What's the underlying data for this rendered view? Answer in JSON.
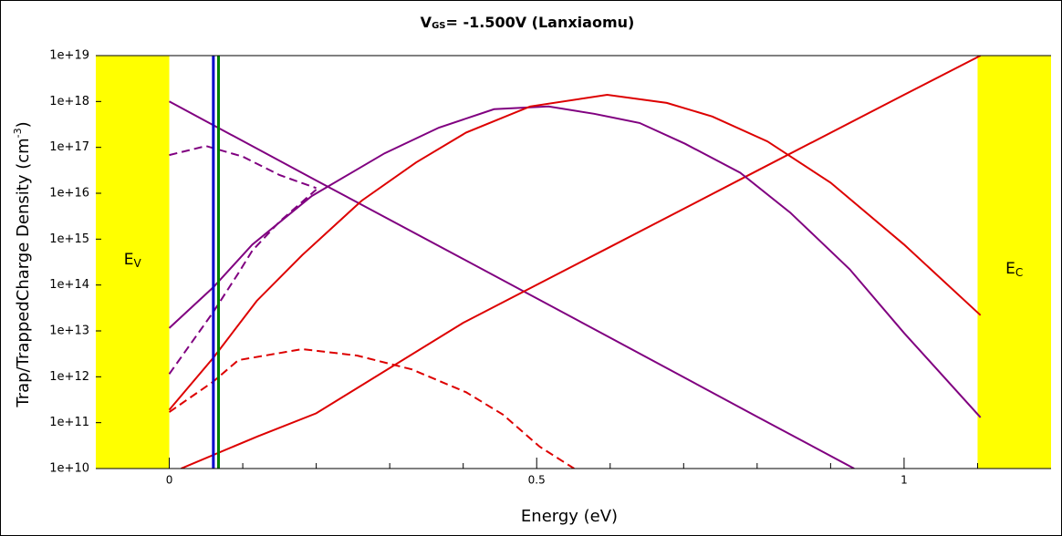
{
  "chart_data": {
    "type": "line",
    "title": {
      "main": "V",
      "sub": "GS",
      "rest": "= -1.500V (Lanxiaomu)"
    },
    "x_label": "Energy (eV)",
    "y_label": {
      "main": "Trap/TrappedCharge Density (cm",
      "sup": "-3",
      "end": ")"
    },
    "xlim": [
      -0.1,
      1.2
    ],
    "xticks": [
      0,
      0.5,
      1
    ],
    "xticks_minor": [
      0.1,
      0.2,
      0.3,
      0.4,
      0.6,
      0.7,
      0.8,
      0.9,
      1.1
    ],
    "ylim": [
      10000000000.0,
      1e+19
    ],
    "ylog": true,
    "yticks": [
      {
        "value": 10000000000.0,
        "label": "1e+10"
      },
      {
        "value": 100000000000.0,
        "label": "1e+11"
      },
      {
        "value": 1000000000000.0,
        "label": "1e+12"
      },
      {
        "value": 10000000000000.0,
        "label": "1e+13"
      },
      {
        "value": 100000000000000.0,
        "label": "1e+14"
      },
      {
        "value": 1000000000000000.0,
        "label": "1e+15"
      },
      {
        "value": 1e+16,
        "label": "1e+16"
      },
      {
        "value": 1e+17,
        "label": "1e+17"
      },
      {
        "value": 1e+18,
        "label": "1e+18"
      },
      {
        "value": 1e+19,
        "label": "1e+19"
      }
    ],
    "bands": [
      {
        "x0": -0.1,
        "x1": 0,
        "color": "#ffff00",
        "label": {
          "main": "E",
          "sub": "V"
        }
      },
      {
        "x0": 1.1,
        "x1": 1.2,
        "color": "#ffff00",
        "label": {
          "main": "E",
          "sub": "C"
        }
      }
    ],
    "vlines": [
      {
        "x": 0.06,
        "color": "#0000cc"
      },
      {
        "x": 0.067,
        "color": "#008000"
      }
    ],
    "series": [
      {
        "color": "#800080",
        "dash": false,
        "x": [
          0,
          0.2,
          0.4,
          0.6,
          0.8,
          0.932
        ],
        "values": [
          1e+18,
          1.9e+16,
          370000000000000.0,
          7100000000000.0,
          135000000000.0,
          10000000000.0
        ]
      },
      {
        "color": "#dd0000",
        "dash": false,
        "x": [
          0.016,
          0.12,
          0.2,
          0.4,
          0.6,
          0.8,
          1.0,
          1.104
        ],
        "values": [
          10000000000.0,
          50000000000.0,
          160000000000.0,
          15000000000000.0,
          680000000000000.0,
          3.1e+16,
          1.4e+18,
          1e+19
        ]
      },
      {
        "color": "#800080",
        "dash": false,
        "x": [
          0,
          0.06,
          0.113,
          0.194,
          0.293,
          0.367,
          0.442,
          0.516,
          0.578,
          0.64,
          0.702,
          0.777,
          0.845,
          0.926,
          1.0,
          1.104
        ],
        "values": [
          11500000000000.0,
          90000000000000.0,
          760000000000000.0,
          8700000000000000.0,
          7.4e+16,
          2.7e+17,
          6.8e+17,
          7.8e+17,
          5.4e+17,
          3.4e+17,
          1.2e+17,
          2.8e+16,
          3800000000000000.0,
          220000000000000.0,
          9000000000000.0,
          130000000000.0
        ]
      },
      {
        "color": "#dd0000",
        "dash": false,
        "x": [
          0,
          0.06,
          0.119,
          0.181,
          0.262,
          0.336,
          0.404,
          0.491,
          0.596,
          0.677,
          0.739,
          0.814,
          0.9,
          1.0,
          1.104
        ],
        "values": [
          190000000000.0,
          2600000000000.0,
          45000000000000.0,
          450000000000000.0,
          6900000000000000.0,
          4.7e+16,
          2.1e+17,
          7.8e+17,
          1.4e+18,
          9.3e+17,
          4.7e+17,
          1.35e+17,
          1.7e+16,
          760000000000000.0,
          22000000000000.0
        ]
      },
      {
        "color": "#800080",
        "dash": true,
        "x": [
          0,
          0.05,
          0.1,
          0.15,
          0.2
        ],
        "values": [
          6.8e+16,
          1.07e+17,
          6.3e+16,
          2.5e+16,
          1.3e+16
        ]
      },
      {
        "color": "#800080",
        "dash": true,
        "x": [
          0,
          0.06,
          0.094,
          0.113,
          0.15,
          0.2
        ],
        "values": [
          1150000000000.0,
          26000000000000.0,
          180000000000000.0,
          560000000000000.0,
          2400000000000000.0,
          1.2e+16
        ]
      },
      {
        "color": "#dd0000",
        "dash": true,
        "x": [
          0,
          0.06,
          0.094,
          0.181,
          0.256,
          0.33,
          0.404,
          0.454,
          0.504,
          0.551
        ],
        "values": [
          170000000000.0,
          790000000000.0,
          2300000000000.0,
          4000000000000.0,
          2900000000000.0,
          1450000000000.0,
          460000000000.0,
          150000000000.0,
          30000000000.0,
          10000000000.0
        ]
      }
    ]
  }
}
